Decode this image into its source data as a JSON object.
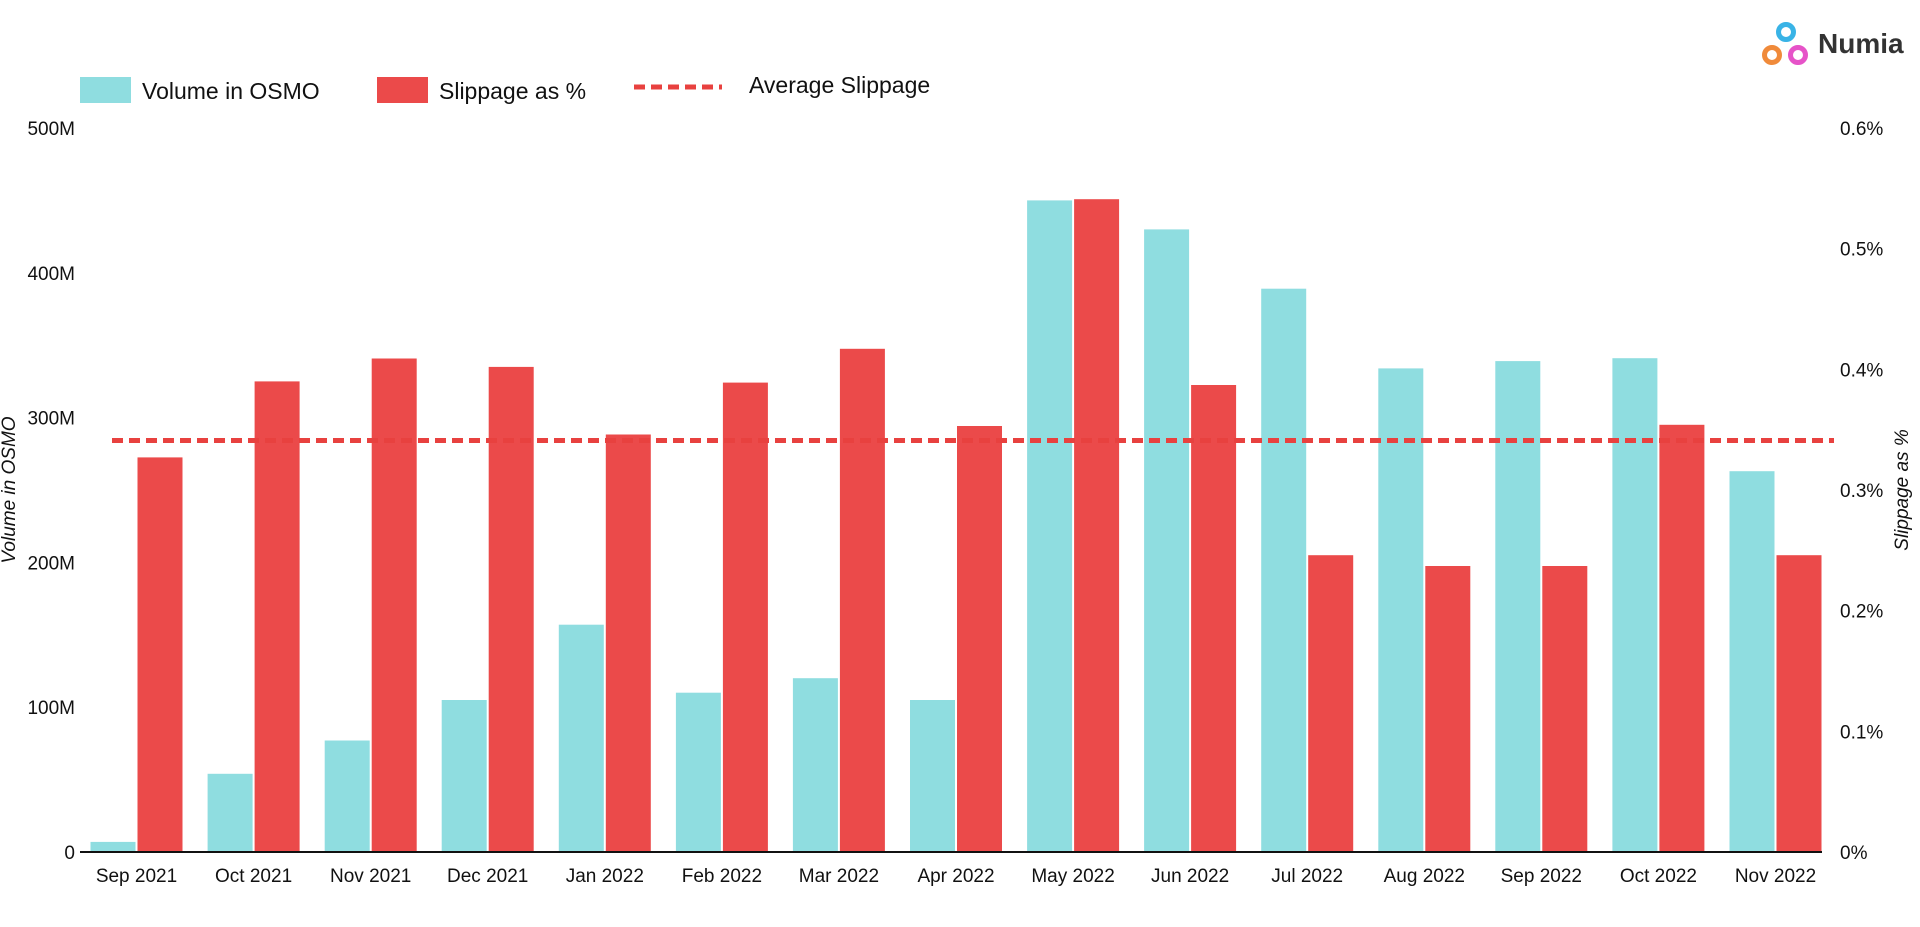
{
  "brand": {
    "name": "Numia"
  },
  "colors": {
    "volume": "#8fdde0",
    "slippage": "#eb4a4a",
    "average": "#e8413f",
    "axis": "#111111",
    "logo_blue": "#39b3e6",
    "logo_orange": "#f08a3a",
    "logo_pink": "#e653c8"
  },
  "chart_data": {
    "type": "bar",
    "categories": [
      "Sep 2021",
      "Oct 2021",
      "Nov 2021",
      "Dec 2021",
      "Jan 2022",
      "Feb 2022",
      "Mar 2022",
      "Apr 2022",
      "May 2022",
      "Jun 2022",
      "Jul 2022",
      "Aug 2022",
      "Sep 2022",
      "Oct 2022",
      "Nov 2022"
    ],
    "series": [
      {
        "name": "Volume in OSMO",
        "axis": "left",
        "values": [
          7000000,
          54000000,
          77000000,
          105000000,
          157000000,
          110000000,
          120000000,
          105000000,
          450000000,
          430000000,
          389000000,
          334000000,
          339000000,
          341000000,
          263000000
        ]
      },
      {
        "name": "Slippage as %",
        "axis": "right",
        "values": [
          0.327,
          0.39,
          0.409,
          0.402,
          0.346,
          0.389,
          0.417,
          0.353,
          0.541,
          0.387,
          0.246,
          0.237,
          0.237,
          0.354,
          0.246
        ]
      }
    ],
    "average_line": {
      "name": "Average Slippage",
      "value": 0.341,
      "axis": "right",
      "style": "dashed"
    },
    "yleft": {
      "label": "Volume in OSMO",
      "lim": [
        0,
        500000000
      ],
      "ticks": [
        "0",
        "100M",
        "200M",
        "300M",
        "400M",
        "500M"
      ]
    },
    "yright": {
      "label": "Slippage as %",
      "lim": [
        0,
        0.6
      ],
      "ticks": [
        "0%",
        "0.1%",
        "0.2%",
        "0.3%",
        "0.4%",
        "0.5%",
        "0.6%"
      ]
    },
    "grid": false,
    "legend_position": "top-left"
  }
}
